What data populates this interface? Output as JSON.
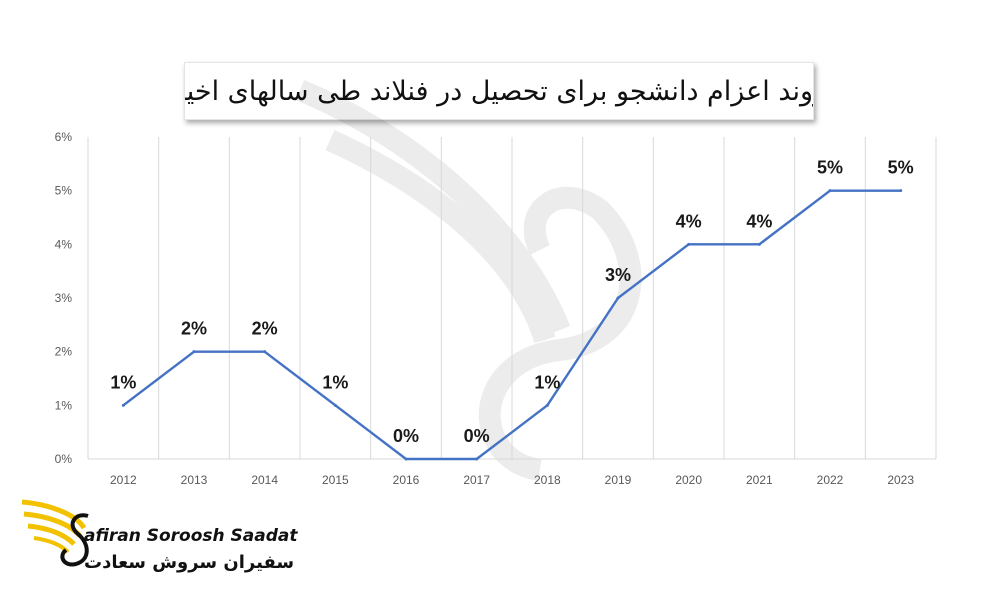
{
  "chart_data": {
    "type": "line",
    "title": "روند اعزام دانشجو برای تحصیل در فنلاند طی سالهای اخیر",
    "categories": [
      "2012",
      "2013",
      "2014",
      "2015",
      "2016",
      "2017",
      "2018",
      "2019",
      "2020",
      "2021",
      "2022",
      "2023"
    ],
    "series": [
      {
        "name": "اعزام دانشجو",
        "values": [
          1,
          2,
          2,
          1,
          0,
          0,
          1,
          3,
          4,
          4,
          5,
          5
        ]
      }
    ],
    "data_labels": [
      "1%",
      "2%",
      "2%",
      "1%",
      "0%",
      "0%",
      "1%",
      "3%",
      "4%",
      "4%",
      "5%",
      "5%"
    ],
    "y_ticks": [
      "0%",
      "1%",
      "2%",
      "3%",
      "4%",
      "5%",
      "6%"
    ],
    "ylim": [
      0,
      6
    ],
    "xlabel": "",
    "ylabel": "",
    "grid": "vertical",
    "line_color": "#4472c4"
  },
  "brand": {
    "name_en": "afiran Soroosh Saadat",
    "name_fa": "سفیران سروش سعادت",
    "wing_color": "#f2c200"
  }
}
